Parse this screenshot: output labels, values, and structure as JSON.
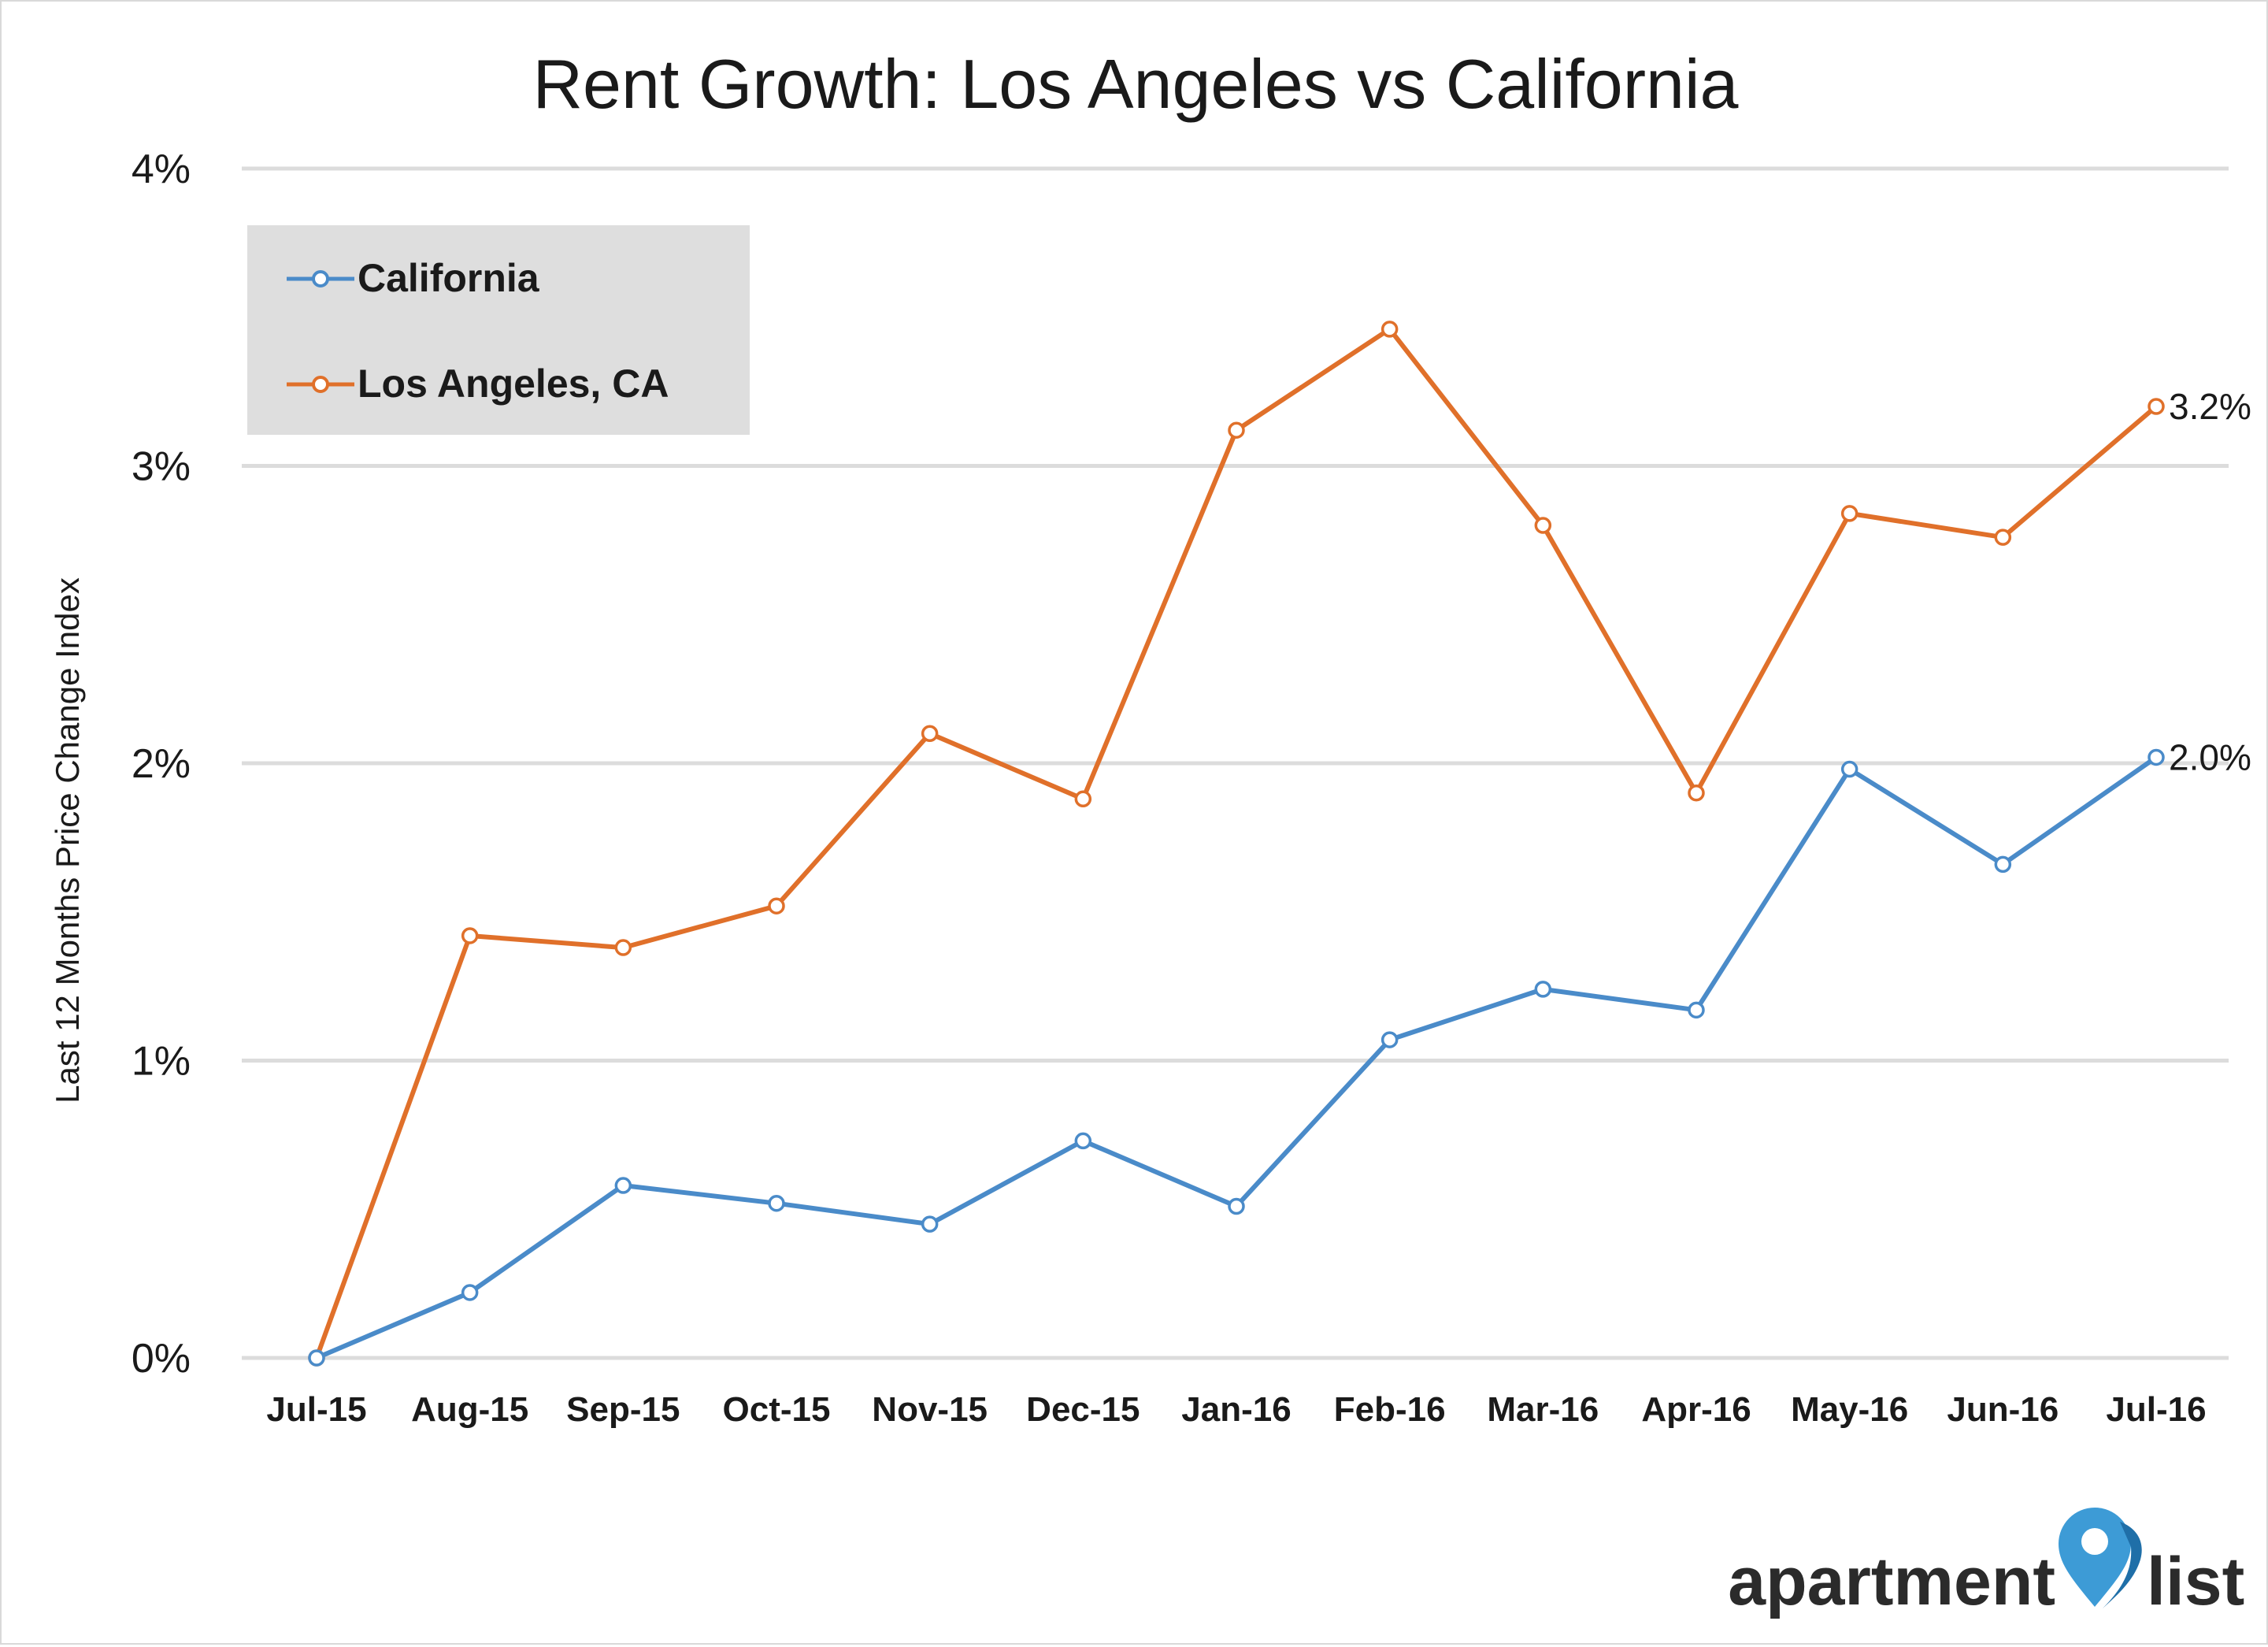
{
  "chart_data": {
    "type": "line",
    "title": "Rent Growth: Los Angeles vs California",
    "xlabel": "",
    "ylabel": "Last 12 Months Price Change Index",
    "ylim": [
      0,
      4
    ],
    "y_ticks": [
      {
        "value": 0,
        "label": "0%"
      },
      {
        "value": 1,
        "label": "1%"
      },
      {
        "value": 2,
        "label": "2%"
      },
      {
        "value": 3,
        "label": "3%"
      },
      {
        "value": 4,
        "label": "4%"
      }
    ],
    "grid": true,
    "legend_position": "top-left",
    "categories": [
      "Jul-15",
      "Aug-15",
      "Sep-15",
      "Oct-15",
      "Nov-15",
      "Dec-15",
      "Jan-16",
      "Feb-16",
      "Mar-16",
      "Apr-16",
      "May-16",
      "Jun-16",
      "Jul-16"
    ],
    "series": [
      {
        "name": "California",
        "color": "#4a8bc9",
        "values": [
          0.0,
          0.22,
          0.58,
          0.52,
          0.45,
          0.73,
          0.51,
          1.07,
          1.24,
          1.17,
          1.98,
          1.66,
          2.02
        ],
        "end_label": "2.0%"
      },
      {
        "name": "Los Angeles, CA",
        "color": "#e0702a",
        "values": [
          0.0,
          1.42,
          1.38,
          1.52,
          2.1,
          1.88,
          3.12,
          3.46,
          2.8,
          1.9,
          2.84,
          2.76,
          3.2
        ],
        "end_label": "3.2%"
      }
    ]
  },
  "branding": {
    "logo_text_left": "apartment",
    "logo_text_right": "list",
    "logo_icon": "map-pin-icon",
    "logo_color": "#2b2b2b",
    "pin_color": "#3d9bd6"
  }
}
